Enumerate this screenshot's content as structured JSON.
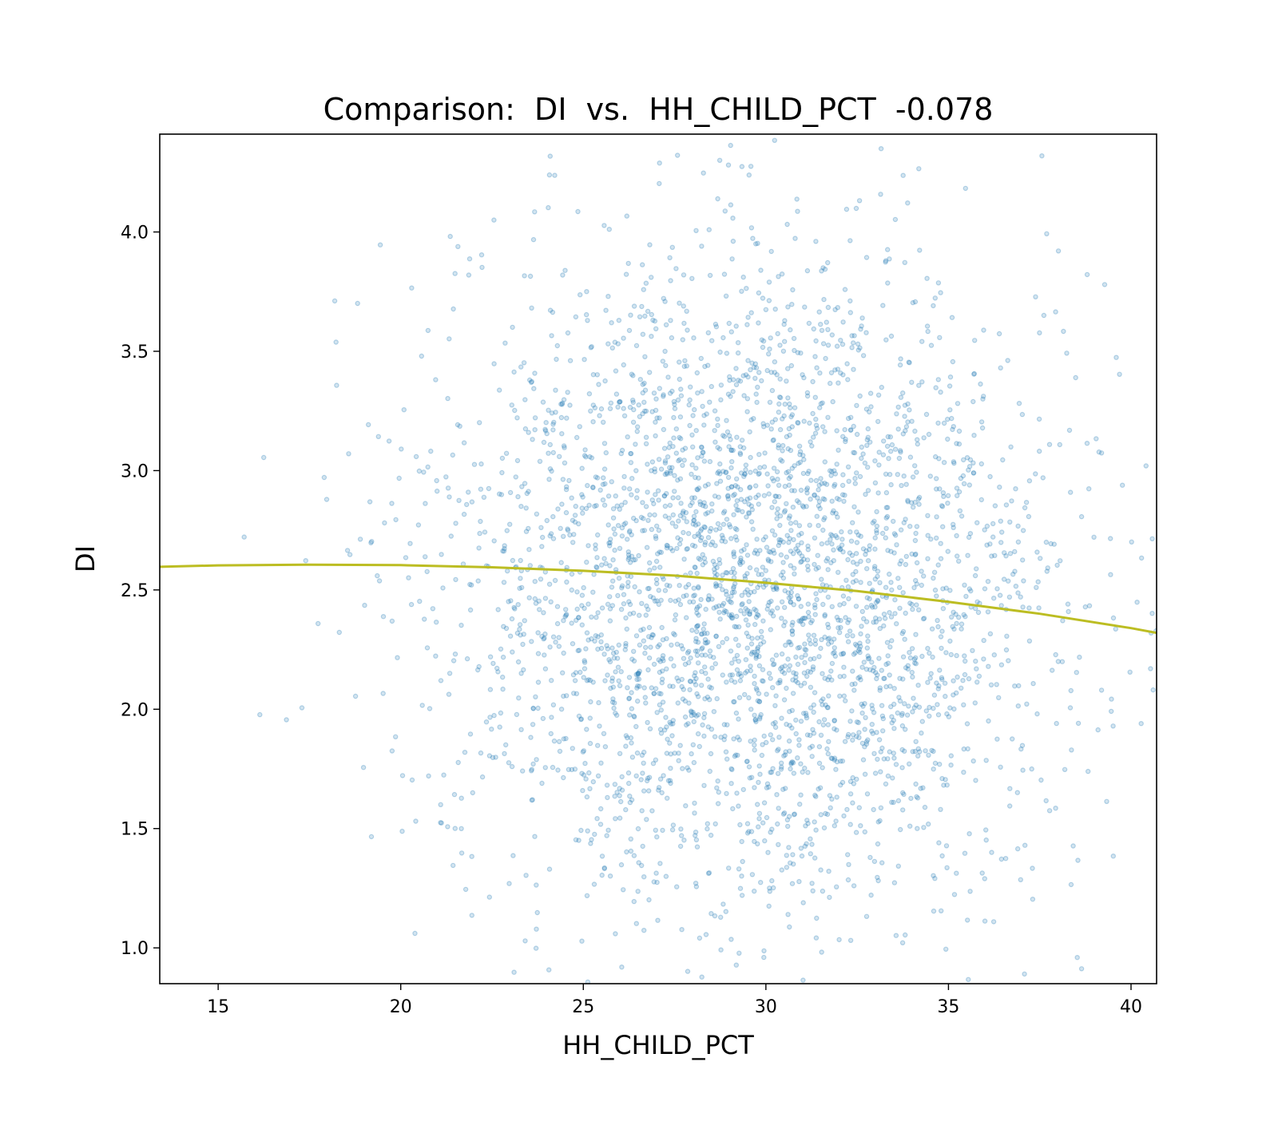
{
  "chart_data": {
    "type": "scatter",
    "title": "Comparison:  DI  vs.  HH_CHILD_PCT  -0.078",
    "xlabel": "HH_CHILD_PCT",
    "ylabel": "DI",
    "xlim": [
      13.4,
      40.7
    ],
    "ylim": [
      0.85,
      4.41
    ],
    "xticks": [
      15,
      20,
      25,
      30,
      35,
      40
    ],
    "yticks": [
      1.0,
      1.5,
      2.0,
      2.5,
      3.0,
      3.5,
      4.0
    ],
    "xtick_labels": [
      "15",
      "20",
      "25",
      "30",
      "35",
      "40"
    ],
    "ytick_labels": [
      "1.0",
      "1.5",
      "2.0",
      "2.5",
      "3.0",
      "3.5",
      "4.0"
    ],
    "grid": false,
    "legend": "none",
    "point_color": "#1f77b4",
    "point_alpha": 0.3,
    "scatter_model": {
      "n_points": 3400,
      "x_center": 29.6,
      "x_spread": 4.2,
      "y_center": 2.52,
      "y_spread": 0.68
    },
    "trend_line": {
      "color": "#bcbd22",
      "x": [
        13.4,
        15,
        17.5,
        20,
        22.5,
        25,
        27.5,
        30,
        32.5,
        35,
        37.5,
        40,
        40.7
      ],
      "y": [
        2.597,
        2.603,
        2.606,
        2.604,
        2.595,
        2.58,
        2.56,
        2.53,
        2.495,
        2.45,
        2.4,
        2.34,
        2.32
      ]
    }
  }
}
